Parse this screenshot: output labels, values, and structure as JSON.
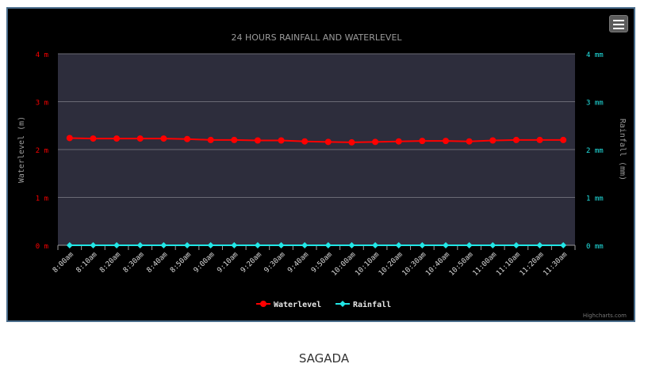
{
  "colors": {
    "background": "#000000",
    "plot_background": "#2d2d3c",
    "gridline": "#6a6a75",
    "waterlevel": "#ff0000",
    "rainfall": "#22e6e6",
    "title": "#9a9a9a",
    "axis_text": "#9a9a9a",
    "frame_border": "#4a6d8c"
  },
  "menu": {
    "icon": "hamburger-menu-icon"
  },
  "credits": "Highcharts.com",
  "caption": "SAGADA",
  "chart_data": {
    "type": "line",
    "title": "24 HOURS RAINFALL AND WATERLEVEL",
    "categories": [
      "8:00am",
      "8:10am",
      "8:20am",
      "8:30am",
      "8:40am",
      "8:50am",
      "9:00am",
      "9:10am",
      "9:20am",
      "9:30am",
      "9:40am",
      "9:50am",
      "10:00am",
      "10:10am",
      "10:20am",
      "10:30am",
      "10:40am",
      "10:50am",
      "11:00am",
      "11:10am",
      "11:20am",
      "11:30am"
    ],
    "y_left": {
      "label": "Waterlevel (m)",
      "range": [
        0,
        4
      ],
      "ticks": [
        "0 m",
        "1 m",
        "2 m",
        "3 m",
        "4 m"
      ]
    },
    "y_right": {
      "label": "Rainfall (mm)",
      "range": [
        0,
        4
      ],
      "ticks": [
        "0 mm",
        "1 mm",
        "2 mm",
        "3 mm",
        "4 mm"
      ]
    },
    "grid": true,
    "legend_position": "bottom-center",
    "series": [
      {
        "name": "Waterlevel",
        "axis": "left",
        "marker": "circle",
        "color": "#ff0000",
        "values": [
          2.24,
          2.23,
          2.23,
          2.23,
          2.23,
          2.22,
          2.2,
          2.2,
          2.19,
          2.19,
          2.17,
          2.16,
          2.15,
          2.16,
          2.17,
          2.18,
          2.18,
          2.17,
          2.19,
          2.2,
          2.2,
          2.2
        ]
      },
      {
        "name": "Rainfall",
        "axis": "right",
        "marker": "diamond",
        "color": "#22e6e6",
        "values": [
          0,
          0,
          0,
          0,
          0,
          0,
          0,
          0,
          0,
          0,
          0,
          0,
          0,
          0,
          0,
          0,
          0,
          0,
          0,
          0,
          0,
          0
        ]
      }
    ]
  }
}
